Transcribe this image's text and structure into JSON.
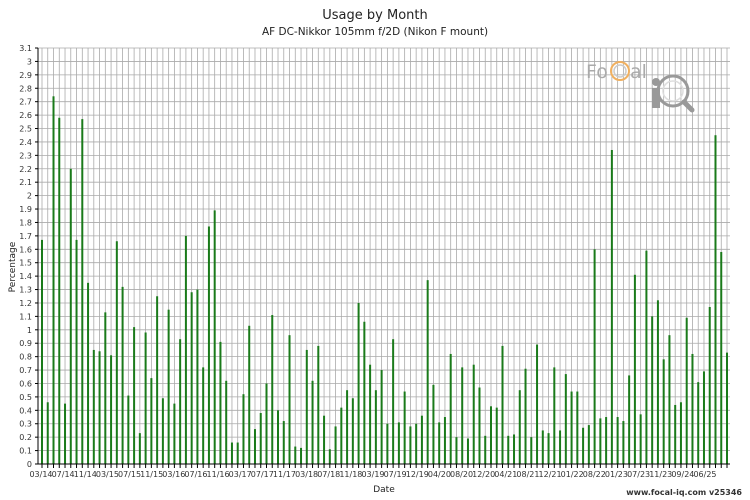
{
  "chart_data": {
    "type": "bar",
    "title": "Usage by Month",
    "subtitle": "AF DC-Nikkor 105mm f/2D (Nikon F mount)",
    "xlabel": "Date",
    "ylabel": "Percentage",
    "ylim": [
      0,
      3.1
    ],
    "ytick_step": 0.1,
    "grid": true,
    "bar_color": "#1a7a1a",
    "x_tick_labels": [
      "03/14",
      "07/14",
      "11/14",
      "03/15",
      "07/15",
      "11/15",
      "03/16",
      "07/16",
      "11/16",
      "03/17",
      "07/17",
      "11/17",
      "03/18",
      "07/18",
      "11/18",
      "03/19",
      "07/19",
      "12/19",
      "04/20",
      "08/20",
      "12/20",
      "04/21",
      "08/21",
      "12/21",
      "01/22",
      "08/22",
      "01/23",
      "07/23",
      "11/23",
      "09/24",
      "06/25"
    ],
    "values": [
      1.67,
      0.46,
      2.74,
      2.58,
      0.45,
      2.2,
      1.67,
      2.57,
      1.35,
      0.85,
      0.84,
      1.13,
      0.81,
      1.66,
      1.32,
      0.51,
      1.02,
      0.23,
      0.98,
      0.64,
      1.25,
      0.49,
      1.15,
      0.45,
      0.93,
      1.7,
      1.28,
      1.3,
      0.72,
      1.77,
      1.89,
      0.91,
      0.62,
      0.16,
      0.16,
      0.52,
      1.03,
      0.26,
      0.38,
      0.6,
      1.11,
      0.4,
      0.32,
      0.96,
      0.13,
      0.12,
      0.85,
      0.62,
      0.88,
      0.36,
      0.11,
      0.28,
      0.42,
      0.55,
      0.49,
      1.2,
      1.06,
      0.74,
      0.55,
      0.7,
      0.3,
      0.93,
      0.31,
      0.54,
      0.28,
      0.3,
      0.36,
      1.37,
      0.59,
      0.31,
      0.35,
      0.82,
      0.2,
      0.72,
      0.19,
      0.74,
      0.57,
      0.21,
      0.43,
      0.42,
      0.88,
      0.21,
      0.22,
      0.55,
      0.71,
      0.2,
      0.89,
      0.25,
      0.23,
      0.72,
      0.25,
      0.67,
      0.54,
      0.54,
      0.27,
      0.29,
      1.6,
      0.34,
      0.35,
      2.34,
      0.35,
      0.32,
      0.66,
      1.41,
      0.37,
      1.59,
      1.1,
      1.22,
      0.78,
      0.96,
      0.44,
      0.46,
      1.09,
      0.82,
      0.61,
      0.69,
      1.17,
      2.45,
      1.58,
      0.83
    ]
  },
  "logo": {
    "text": "FoCal iQ"
  },
  "footer": "www.focal-iq.com  v25346"
}
